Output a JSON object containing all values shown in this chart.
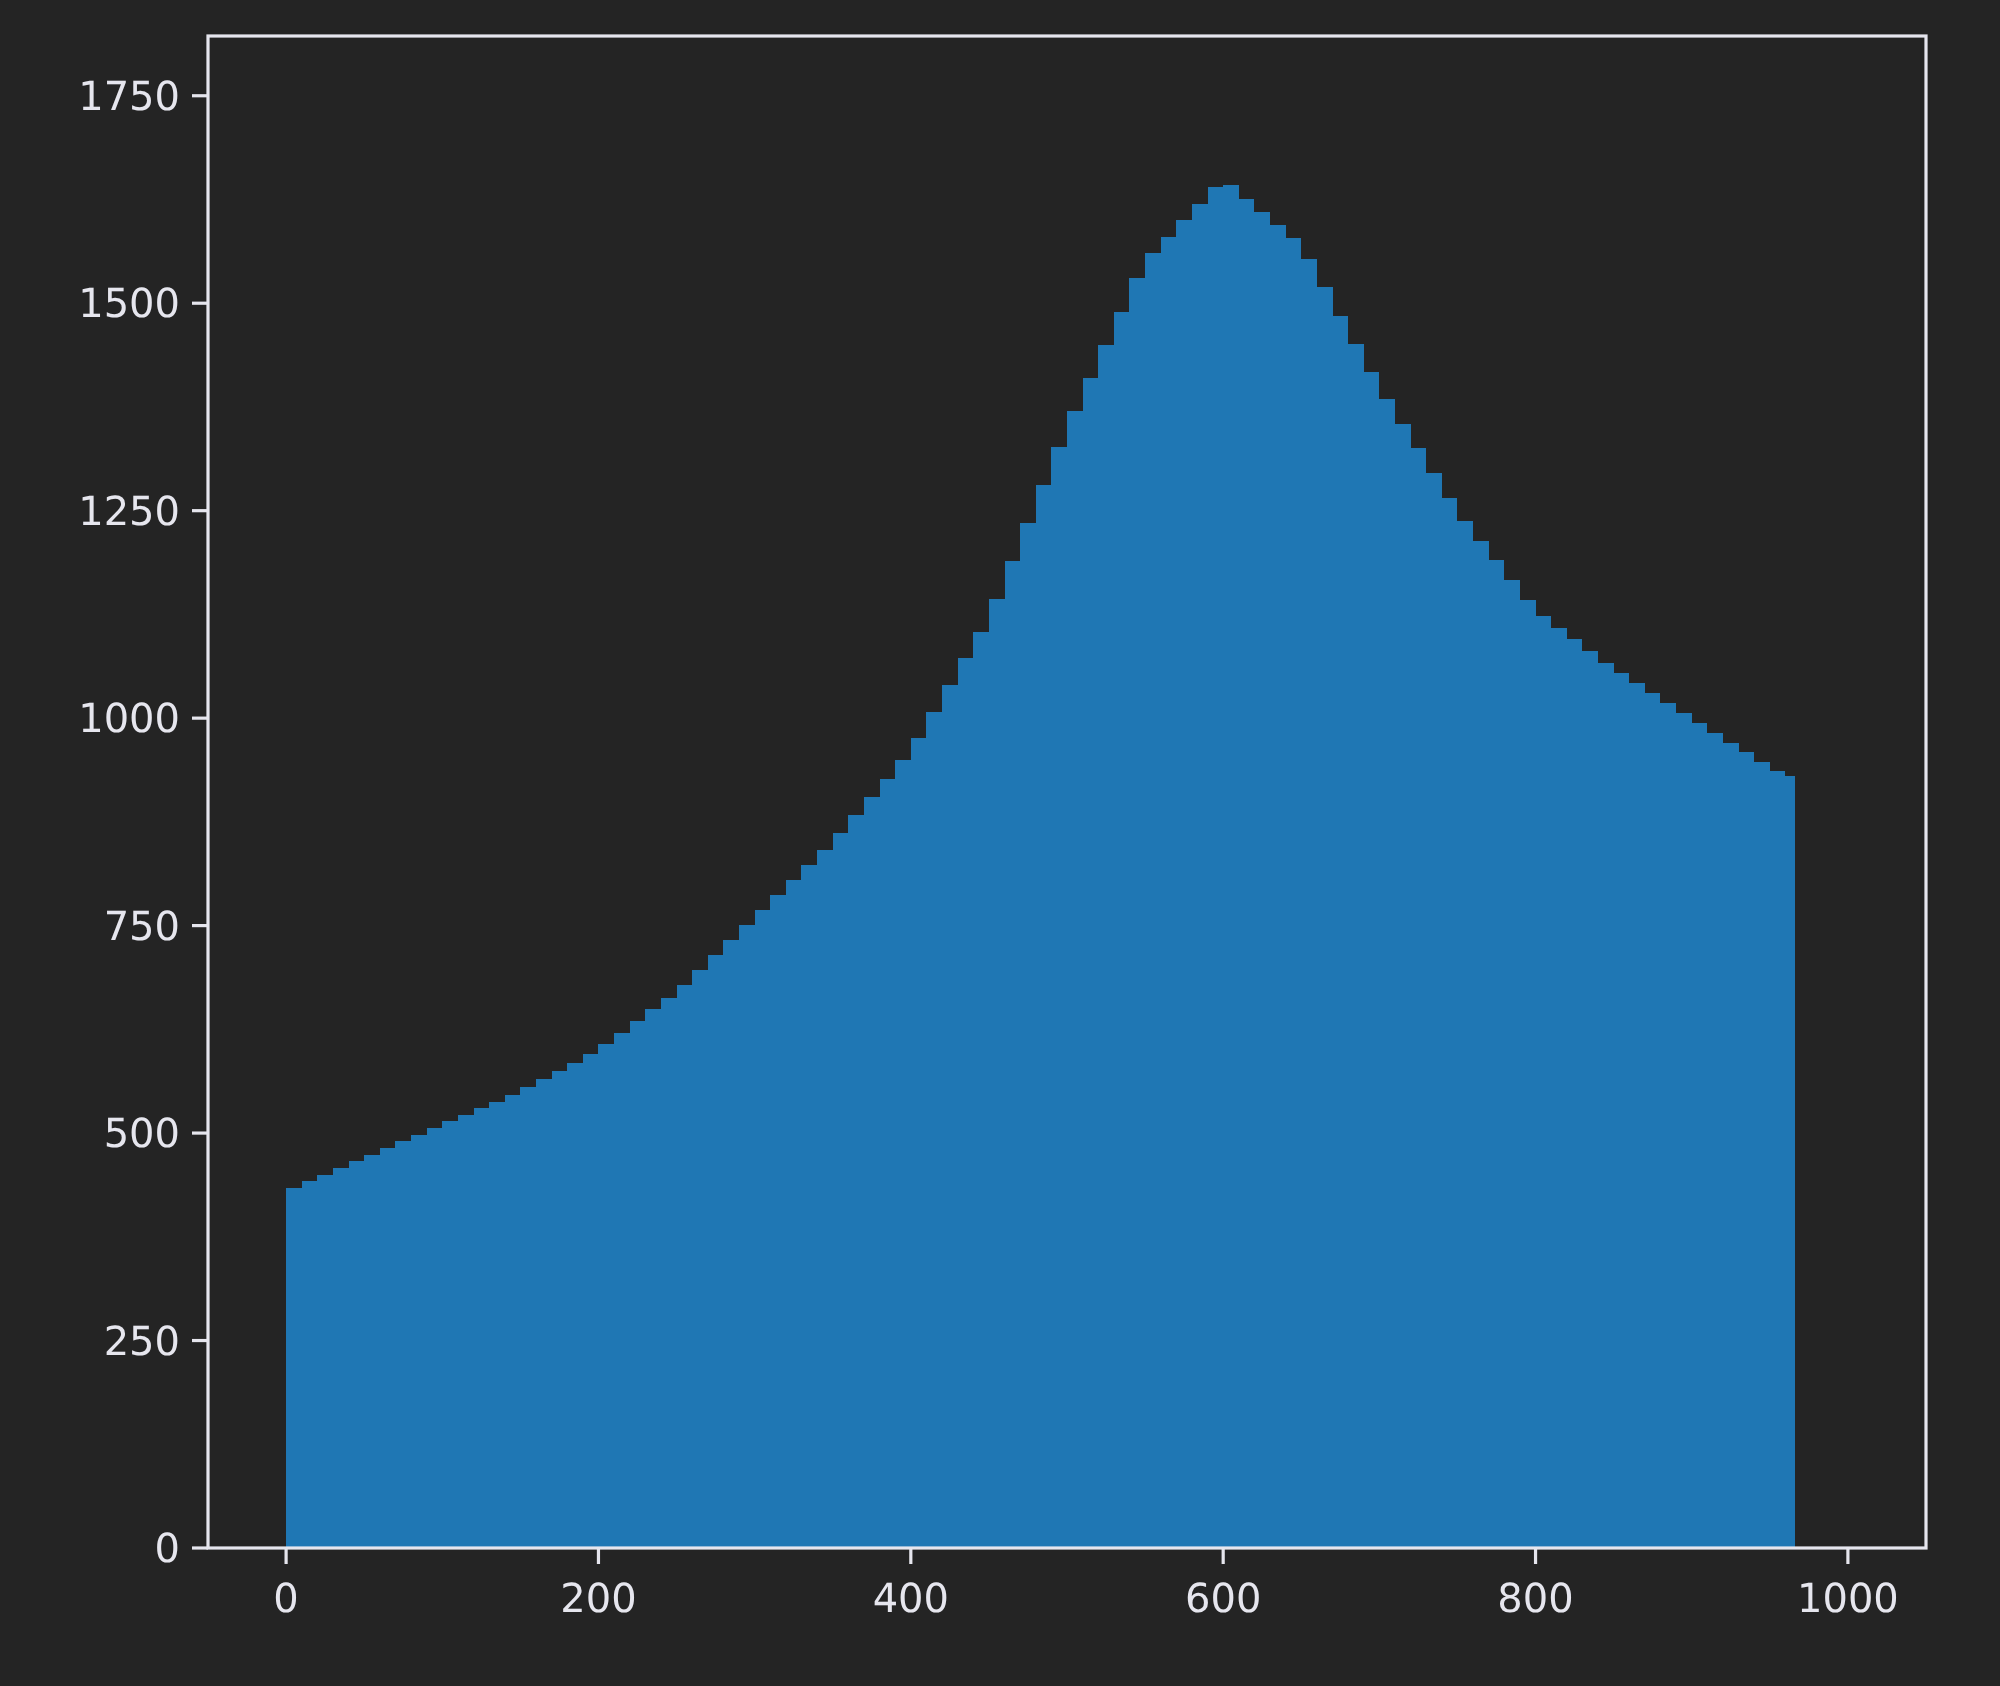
{
  "chart_data": {
    "type": "histogram",
    "color": "#1f77b4",
    "bins": [
      0,
      10,
      20,
      30,
      40,
      50,
      60,
      70,
      80,
      90,
      100,
      110,
      120,
      130,
      140,
      150,
      160,
      170,
      180,
      190,
      200,
      210,
      220,
      230,
      240,
      250,
      260,
      270,
      280,
      290,
      300,
      310,
      320,
      330,
      340,
      350,
      360,
      370,
      380,
      390,
      400,
      410,
      420,
      430,
      440,
      450,
      460,
      470,
      480,
      490,
      500,
      510,
      520,
      530,
      540,
      550,
      560,
      570,
      580,
      590,
      600,
      610,
      620,
      630,
      640,
      650,
      660,
      670,
      680,
      690,
      700,
      710,
      720,
      730,
      740,
      750,
      760,
      770,
      780,
      790,
      800,
      810,
      820,
      830,
      840,
      850,
      860,
      870,
      880,
      890,
      900,
      910,
      920,
      930,
      940,
      950,
      960,
      966
    ],
    "values": [
      434,
      442,
      450,
      458,
      466,
      474,
      482,
      490,
      498,
      506,
      514,
      522,
      530,
      538,
      546,
      555,
      565,
      575,
      585,
      595,
      607,
      621,
      635,
      649,
      663,
      679,
      697,
      715,
      733,
      751,
      769,
      787,
      805,
      823,
      841,
      861,
      883,
      905,
      927,
      949,
      976,
      1008,
      1040,
      1072,
      1104,
      1143,
      1189,
      1235,
      1281,
      1327,
      1370,
      1410,
      1450,
      1490,
      1530,
      1560,
      1580,
      1600,
      1620,
      1640,
      1642,
      1626,
      1610,
      1594,
      1578,
      1553,
      1519,
      1485,
      1451,
      1417,
      1385,
      1355,
      1325,
      1295,
      1265,
      1238,
      1214,
      1190,
      1166,
      1142,
      1123,
      1109,
      1095,
      1081,
      1067,
      1054,
      1042,
      1030,
      1018,
      1006,
      994,
      982,
      970,
      959,
      947,
      936,
      930
    ],
    "xlim": [
      -50,
      1050
    ],
    "xticks": [
      0,
      200,
      400,
      600,
      800,
      1000
    ],
    "ylim": [
      0,
      1822
    ],
    "yticks": [
      0,
      250,
      500,
      750,
      1000,
      1250,
      1500,
      1750
    ]
  }
}
